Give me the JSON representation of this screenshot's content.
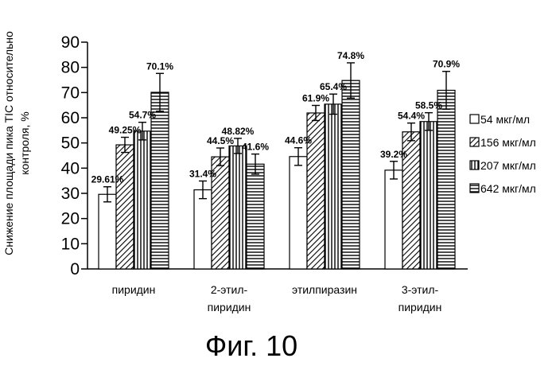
{
  "figure_caption": "Фиг. 10",
  "colors": {
    "ink": "#000000",
    "bar_fill": "#ffffff"
  },
  "chart_data": {
    "type": "bar",
    "ylabel_lines": [
      "Снижение площади пика TIC относительно",
      "контроля, %"
    ],
    "ylim": [
      0,
      90
    ],
    "yticks": [
      0,
      10,
      20,
      30,
      40,
      50,
      60,
      70,
      80,
      90
    ],
    "categories": [
      {
        "lines": [
          "пиридин"
        ]
      },
      {
        "lines": [
          "2-этил-",
          "пиридин"
        ]
      },
      {
        "lines": [
          "этилпиразин"
        ]
      },
      {
        "lines": [
          "3-этил-",
          "пиридин"
        ]
      }
    ],
    "series": [
      {
        "name": "54 мкг/мл",
        "pattern": "blank",
        "values": [
          29.61,
          31.4,
          44.6,
          39.2
        ],
        "errors": [
          3,
          3.5,
          3.5,
          3.5
        ],
        "labels": [
          "29.61%",
          "31.4%",
          "44.6%",
          "39.2%"
        ]
      },
      {
        "name": "156 мкг/мл",
        "pattern": "diagonal",
        "values": [
          49.25,
          44.5,
          61.9,
          54.4
        ],
        "errors": [
          3,
          3.5,
          3,
          3.5
        ],
        "labels": [
          "49.25%",
          "44.5%",
          "61.9%",
          "54.4%"
        ]
      },
      {
        "name": "207 мкг/мл",
        "pattern": "vertical",
        "values": [
          54.7,
          48.82,
          65.4,
          58.5
        ],
        "errors": [
          3.5,
          3,
          4,
          3.5
        ],
        "labels": [
          "54.7%",
          "48.82%",
          "65.4%",
          "58.5%"
        ]
      },
      {
        "name": "642 мкг/мл",
        "pattern": "horizontal",
        "values": [
          70.1,
          41.6,
          74.8,
          70.9
        ],
        "errors": [
          7.5,
          4,
          7,
          7.5
        ],
        "labels": [
          "70.1%",
          "41.6%",
          "74.8%",
          "70.9%"
        ]
      }
    ],
    "legend_position": "right",
    "grid": false
  }
}
